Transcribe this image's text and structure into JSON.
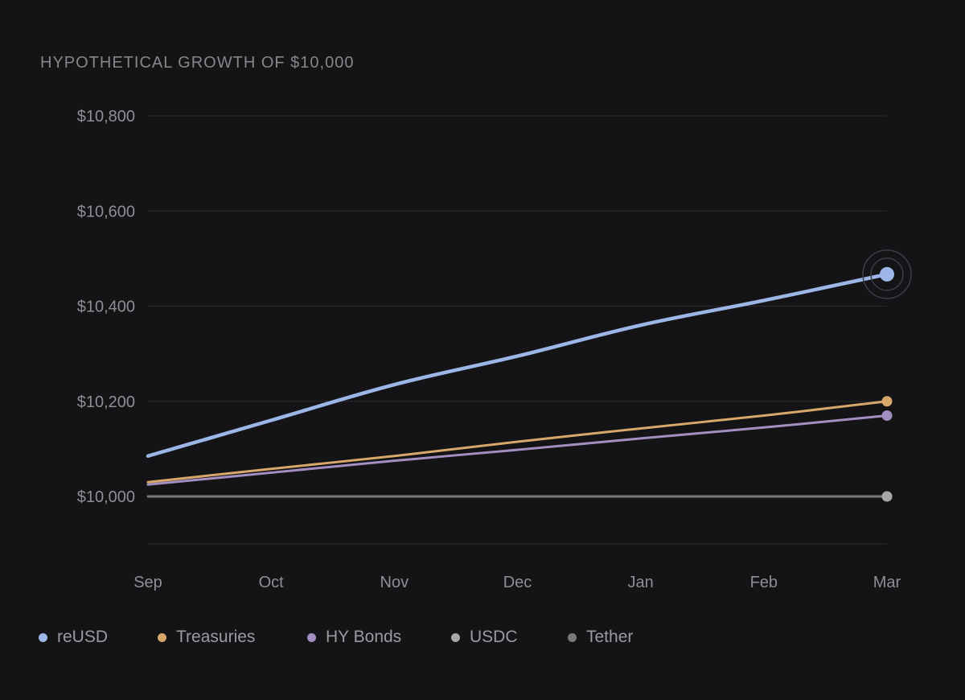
{
  "chart_data": {
    "type": "line",
    "title": "HYPOTHETICAL GROWTH OF $10,000",
    "xlabel": "",
    "ylabel": "",
    "categories": [
      "Sep",
      "Oct",
      "Nov",
      "Dec",
      "Jan",
      "Feb",
      "Mar"
    ],
    "y_ticks": [
      {
        "value": 10800,
        "label": "$10,800"
      },
      {
        "value": 10600,
        "label": "$10,600"
      },
      {
        "value": 10400,
        "label": "$10,400"
      },
      {
        "value": 10200,
        "label": "$10,200"
      },
      {
        "value": 10000,
        "label": "$10,000"
      }
    ],
    "ylim": [
      9900,
      10800
    ],
    "grid": true,
    "legend_position": "bottom-left",
    "series": [
      {
        "name": "reUSD",
        "color": "#9db6e8",
        "values": [
          10085,
          10160,
          10235,
          10295,
          10360,
          10412,
          10467
        ],
        "highlight_last": true
      },
      {
        "name": "Treasuries",
        "color": "#d8a76a",
        "values": [
          10030,
          10058,
          10085,
          10115,
          10143,
          10170,
          10200
        ]
      },
      {
        "name": "HY Bonds",
        "color": "#a38ec2",
        "values": [
          10025,
          10050,
          10075,
          10098,
          10122,
          10145,
          10170
        ]
      },
      {
        "name": "USDC",
        "color": "#a7a7aa",
        "values": [
          10000,
          10000,
          10000,
          10000,
          10000,
          10000,
          10000
        ],
        "hidden_line": true
      },
      {
        "name": "Tether",
        "color": "#7a7a7c",
        "values": [
          10000,
          10000,
          10000,
          10000,
          10000,
          10000,
          10000
        ]
      }
    ]
  }
}
